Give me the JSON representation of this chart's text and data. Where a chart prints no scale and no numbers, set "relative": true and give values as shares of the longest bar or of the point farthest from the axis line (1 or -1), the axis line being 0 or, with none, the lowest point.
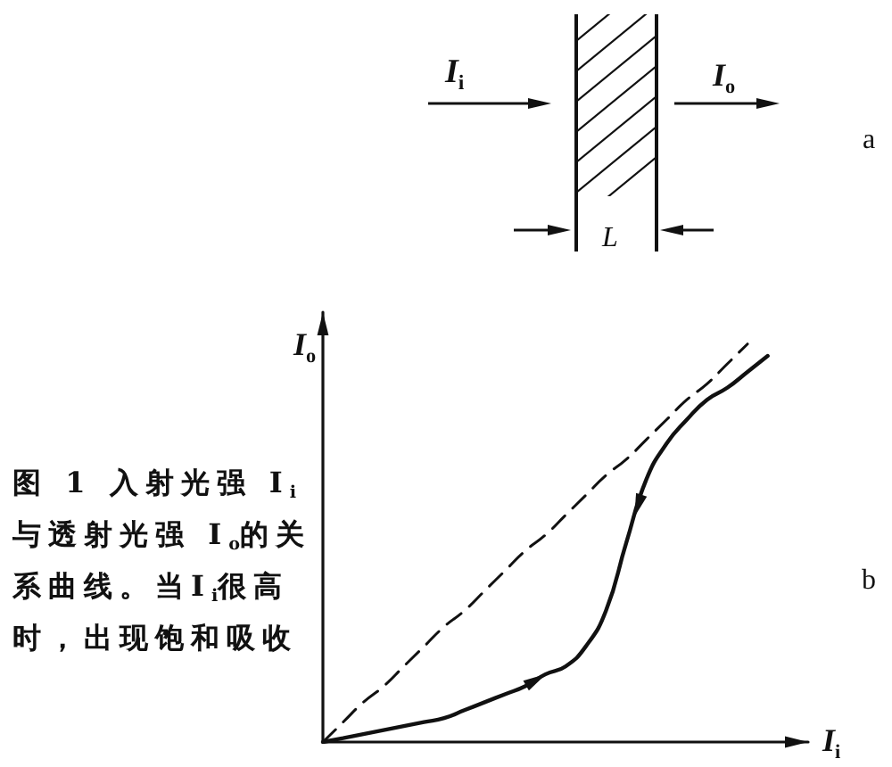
{
  "chart_data": {
    "type": "line",
    "relative": true,
    "marker": "none",
    "xlabel": "I$_{i}$",
    "ylabel": "I$_{o}$",
    "categories": [
      null,
      null,
      null,
      null,
      null,
      null,
      null,
      null,
      null,
      null,
      null,
      null,
      null,
      null,
      null,
      null,
      null,
      null,
      null,
      null,
      null,
      null,
      null,
      null,
      null
    ],
    "series": [
      {
        "color": "#111111",
        "line_style": "dashed",
        "values": [
          0,
          0.05,
          0.1,
          0.14,
          0.19,
          0.24,
          0.29,
          0.33,
          0.38,
          0.43,
          0.48,
          0.52,
          0.57,
          0.62,
          0.67,
          0.71,
          0.76,
          0.81,
          0.86,
          0.9,
          0.95,
          1,
          null,
          null,
          null
        ]
      },
      {
        "color": "#111111",
        "line_style": "solid",
        "values": [
          0,
          0.01,
          0.02,
          0.03,
          0.04,
          0.05,
          0.06,
          0.08,
          0.1,
          0.12,
          0.14,
          0.17,
          0.19,
          0.24,
          0.33,
          0.5,
          0.66,
          0.75,
          0.81,
          0.86,
          0.89,
          0.93,
          0.97,
          null,
          null
        ]
      }
    ],
    "annotations": [
      "I$_{i}$",
      "I$_{o}$",
      "L",
      "a",
      "b",
      "图 1  入射光强 I$_{i}$ 与透射光强 I$_{o}$的关系曲线。当I$_{i}$很高时，出现饱和吸收"
    ]
  }
}
